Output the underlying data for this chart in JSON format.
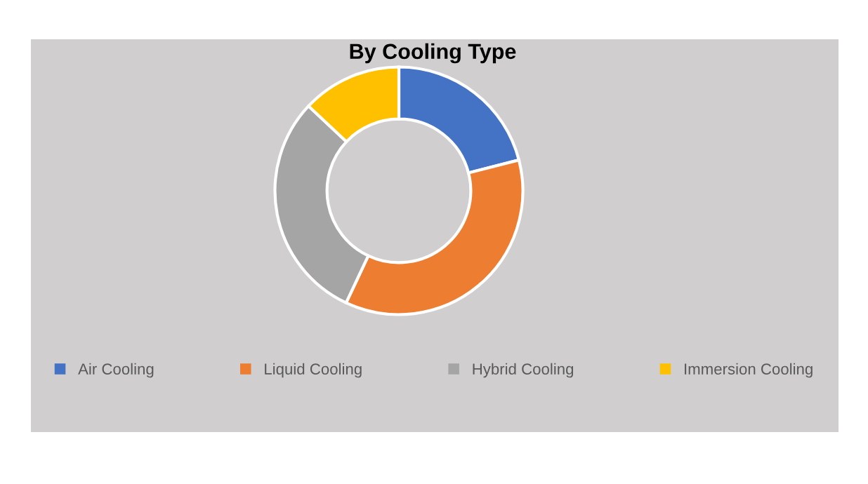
{
  "chart_data": {
    "type": "donut",
    "title": "By Cooling Type",
    "categories": [
      "Air Cooling",
      "Liquid Cooling",
      "Hybrid Cooling",
      "Immersion Cooling"
    ],
    "values": [
      21,
      36,
      30,
      13
    ],
    "colors": [
      "#4472c4",
      "#ed7d31",
      "#a5a5a5",
      "#ffc000"
    ],
    "legend": "bottom"
  }
}
